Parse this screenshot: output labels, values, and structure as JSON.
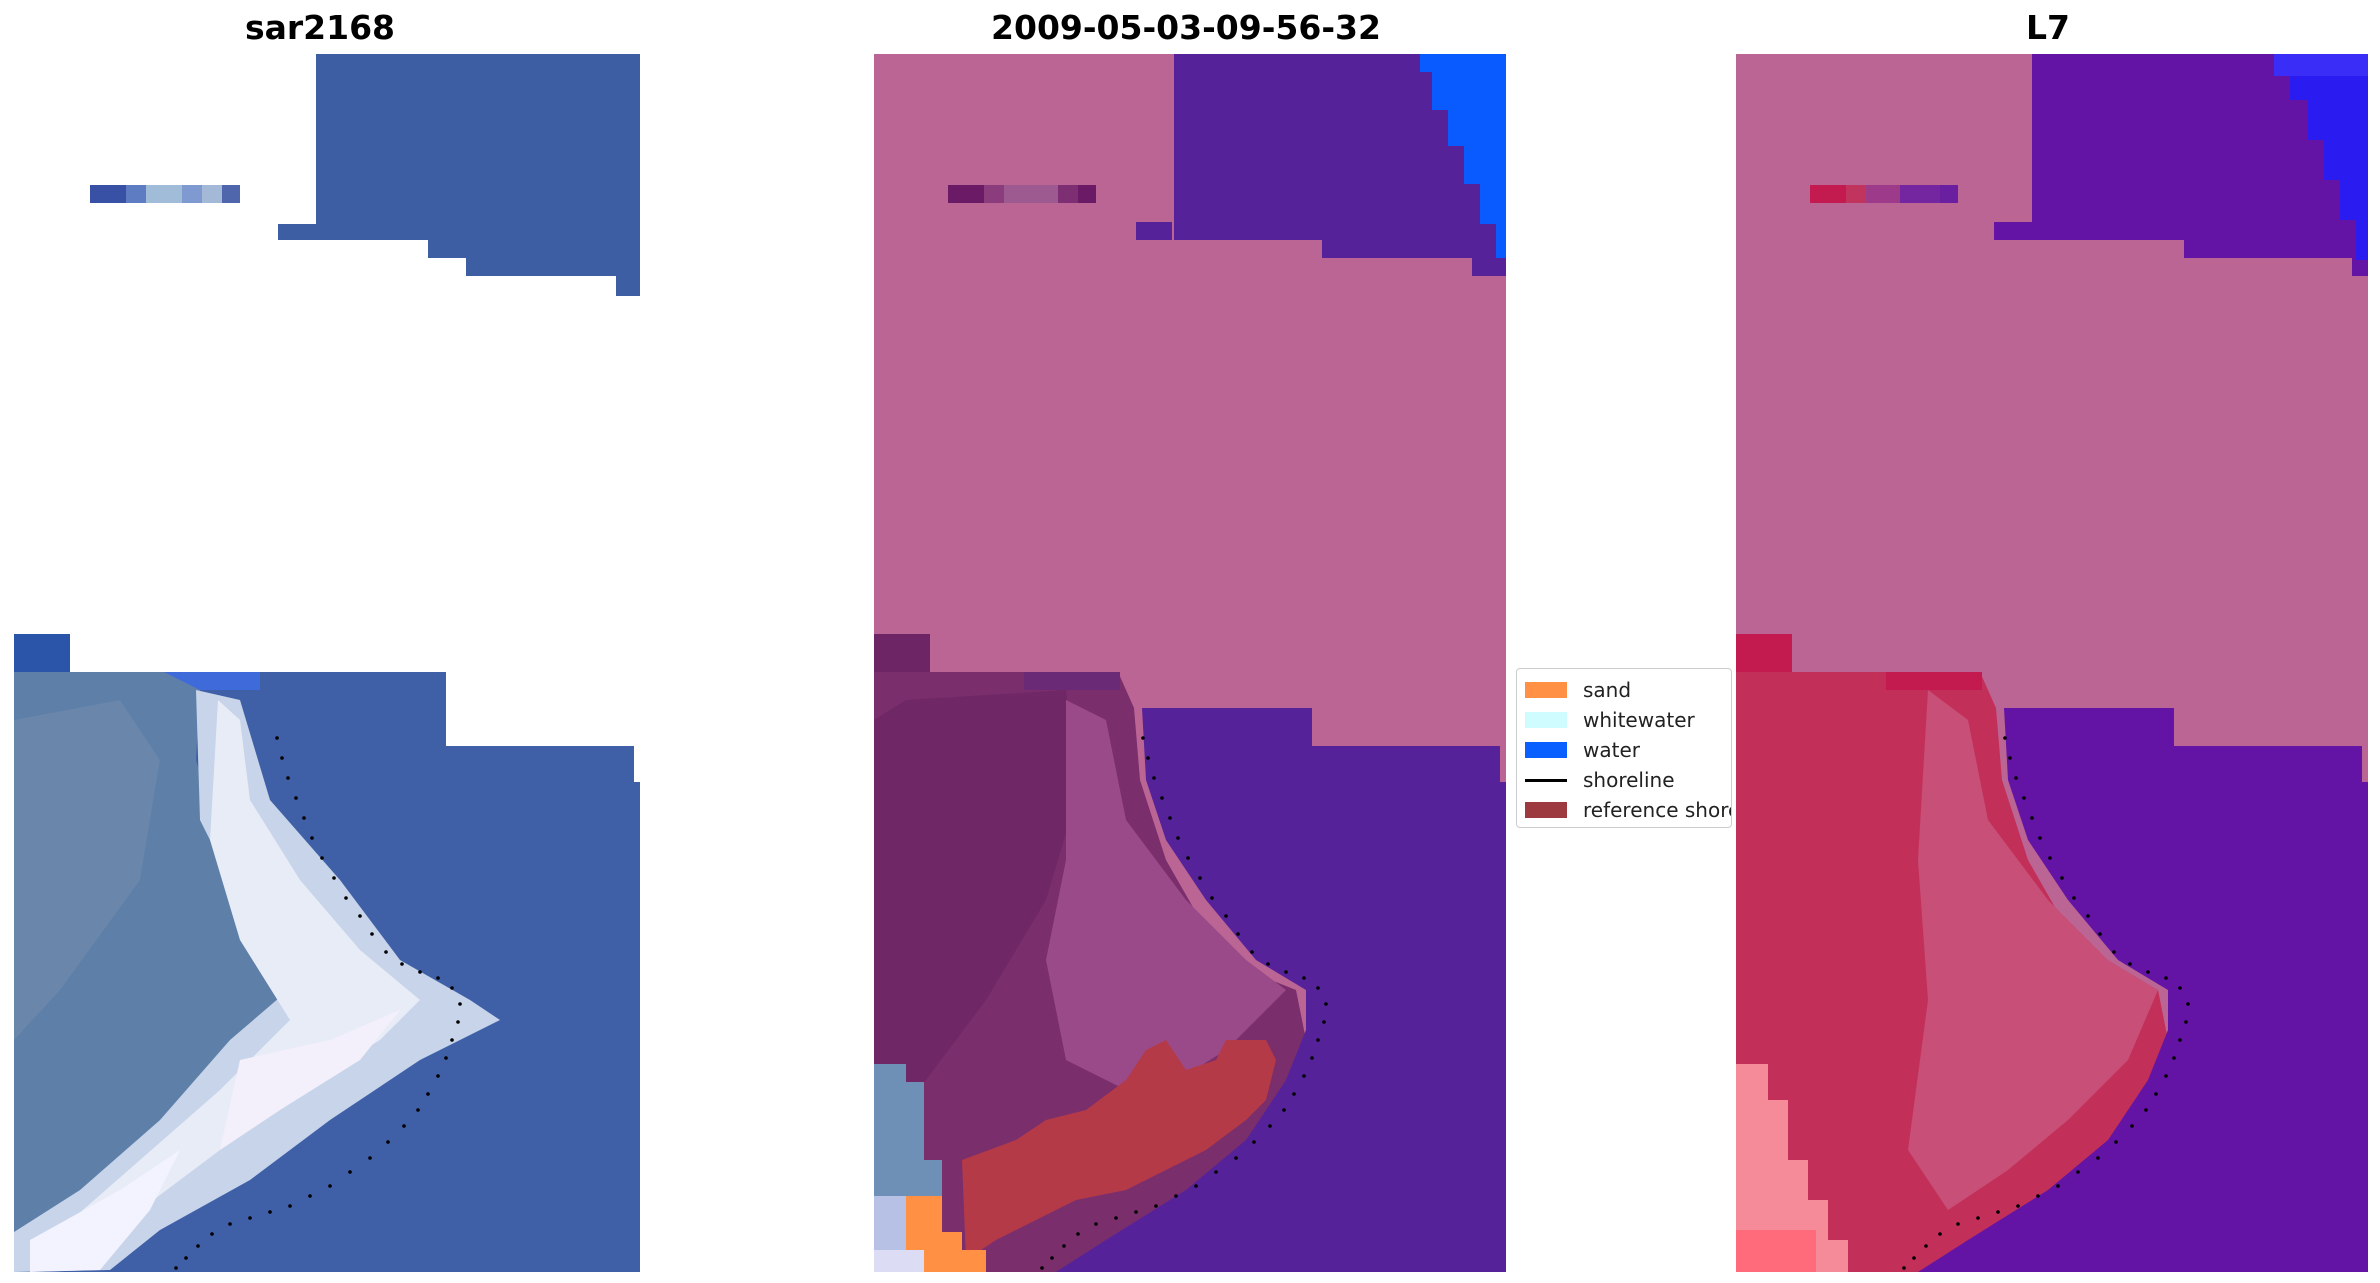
{
  "panels": [
    {
      "title": "sar2168"
    },
    {
      "title": "2009-05-03-09-56-32"
    },
    {
      "title": "L7"
    }
  ],
  "legend": {
    "items": [
      {
        "label": "sand",
        "color": "#ff9044"
      },
      {
        "label": "whitewater",
        "color": "#cffcff"
      },
      {
        "label": "water",
        "color": "#0a60ff"
      },
      {
        "label": "shoreline",
        "color": "#000000",
        "kind": "line"
      },
      {
        "label": "reference shoreline",
        "color": "#9c3a3f"
      }
    ]
  },
  "colors": {
    "rgb_water": "#3e5ea3",
    "classified_land": "#bb6594",
    "classified_water": "#55229a",
    "classified_sand": "#ff9044",
    "classified_reference": "#b53a48",
    "l7_land": "#bb6594",
    "l7_water": "#6414a4",
    "l7_red": "#c2305a"
  }
}
